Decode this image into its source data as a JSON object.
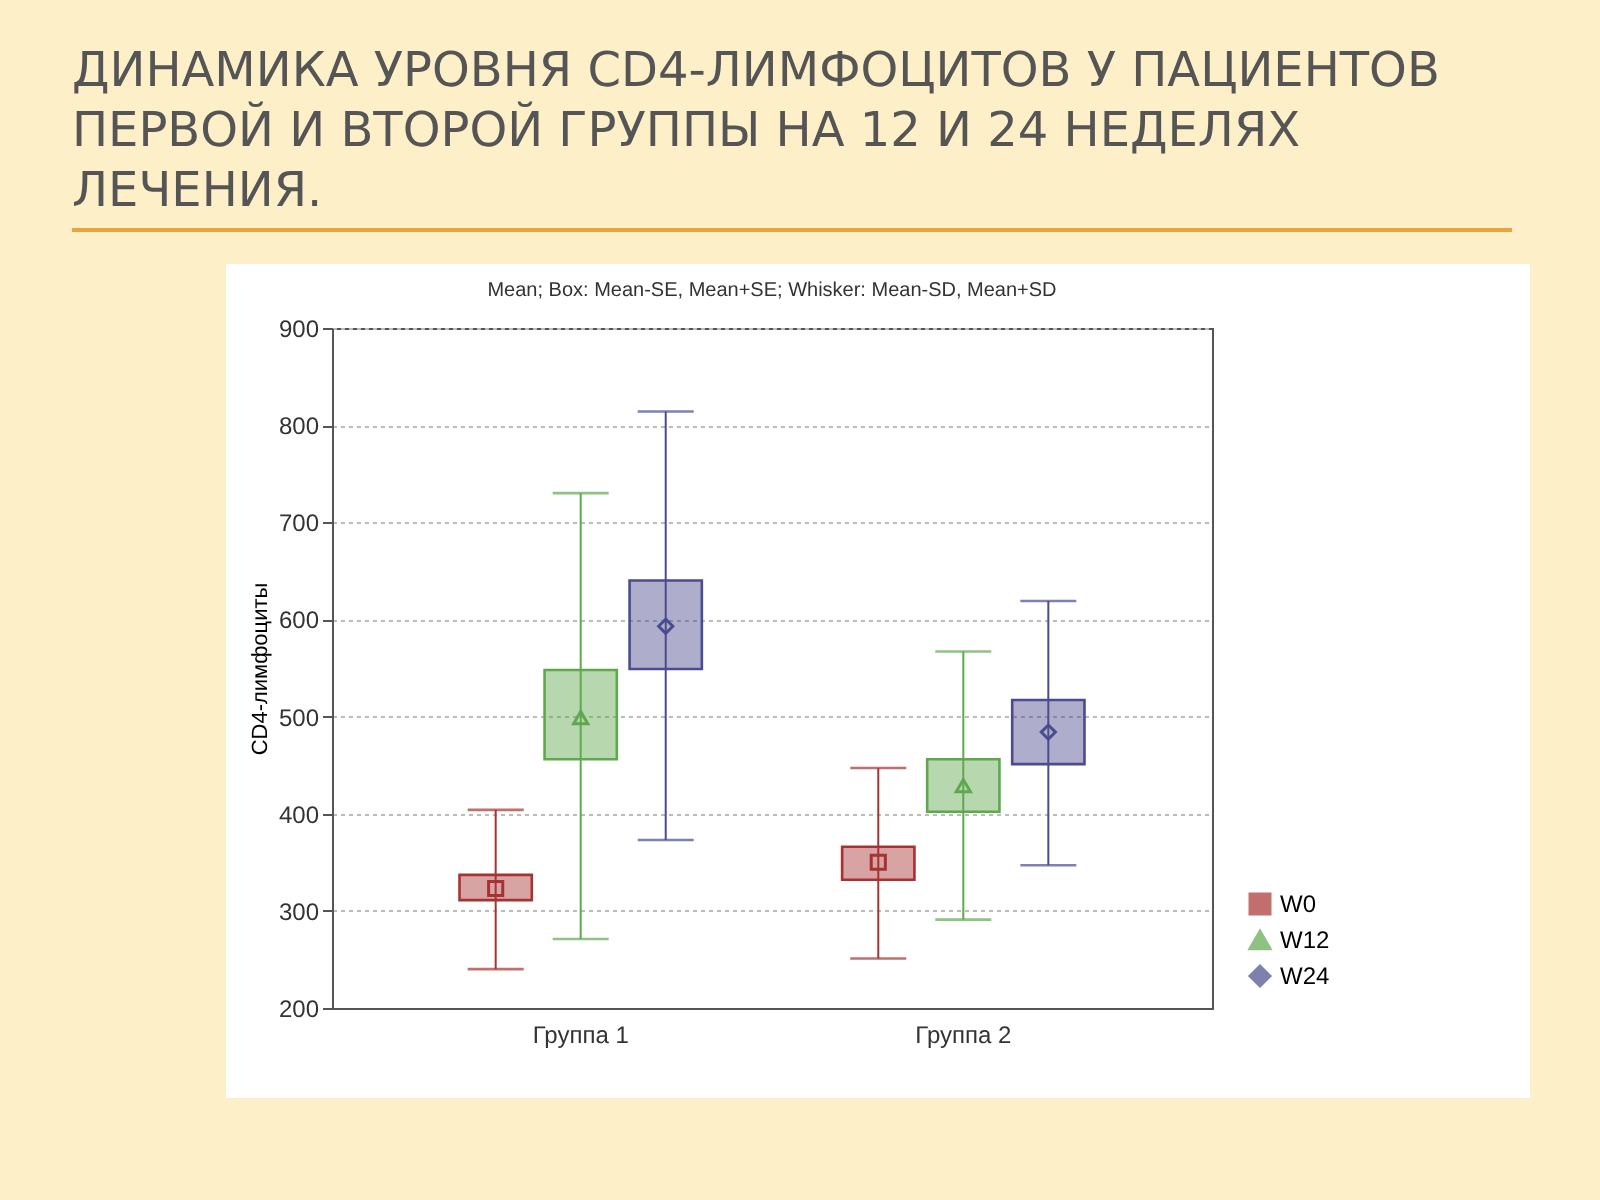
{
  "chart_data": {
    "type": "box",
    "title": "ДИНАМИКА УРОВНЯ CD4-ЛИМФОЦИТОВ У ПАЦИЕНТОВ ПЕРВОЙ И ВТОРОЙ ГРУППЫ НА 12 И 24 НЕДЕЛЯХ ЛЕЧЕНИЯ.",
    "subtitle": "Mean; Box: Mean-SE, Mean+SE; Whisker: Mean-SD, Mean+SD",
    "ylabel": "CD4-лимфоциты",
    "categories": [
      "Группа 1",
      "Группа 2"
    ],
    "series": [
      {
        "name": "W0",
        "color": "#a83232",
        "marker": "square",
        "boxes": [
          {
            "low": 240,
            "q1": 311,
            "q3": 337,
            "high": 404,
            "mean": 323
          },
          {
            "low": 251,
            "q1": 332,
            "q3": 366,
            "high": 447,
            "mean": 350
          }
        ]
      },
      {
        "name": "W12",
        "color": "#5fa84e",
        "marker": "triangle",
        "boxes": [
          {
            "low": 271,
            "q1": 456,
            "q3": 548,
            "high": 730,
            "mean": 499
          },
          {
            "low": 291,
            "q1": 402,
            "q3": 456,
            "high": 567,
            "mean": 429
          }
        ]
      },
      {
        "name": "W24",
        "color": "#4b4b8f",
        "marker": "diamond",
        "boxes": [
          {
            "low": 373,
            "q1": 549,
            "q3": 640,
            "high": 814,
            "mean": 593
          },
          {
            "low": 347,
            "q1": 451,
            "q3": 517,
            "high": 619,
            "mean": 484
          }
        ]
      }
    ],
    "ylim": [
      200,
      900
    ],
    "yticks": [
      200,
      300,
      400,
      500,
      600,
      700,
      800,
      900
    ],
    "grid": "y",
    "legend": "bottom right"
  }
}
